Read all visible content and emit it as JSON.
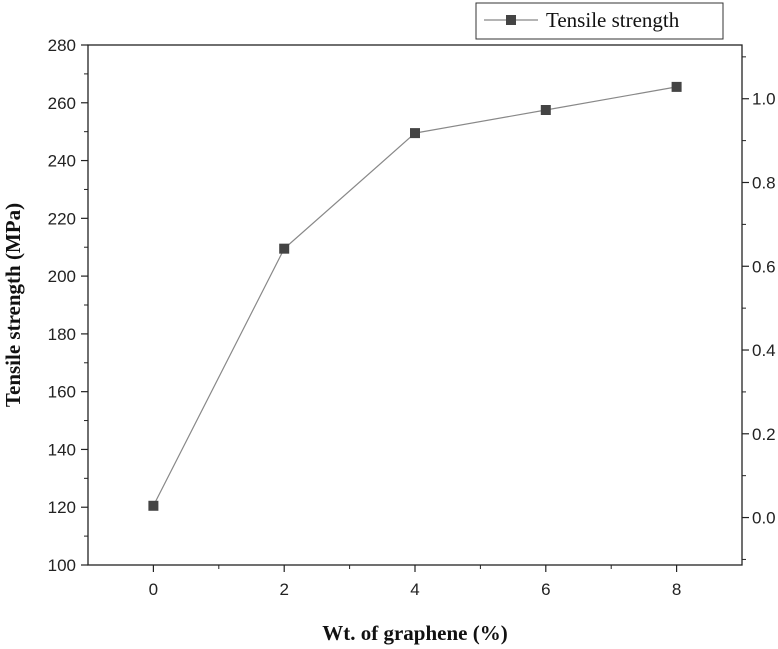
{
  "chart_data": {
    "type": "line",
    "xlabel": "Wt. of graphene (%)",
    "ylabel": "Tensile strength (MPa)",
    "xlim": [
      -1,
      9
    ],
    "ylim": [
      100,
      280
    ],
    "y2lim": [
      -0.1133,
      1.1283
    ],
    "x_ticks": [
      "0",
      "2",
      "4",
      "6",
      "8"
    ],
    "x_tick_values": [
      0,
      2,
      4,
      6,
      8
    ],
    "y_ticks": [
      "100",
      "120",
      "140",
      "160",
      "180",
      "200",
      "220",
      "240",
      "260",
      "280"
    ],
    "y_tick_values": [
      100,
      120,
      140,
      160,
      180,
      200,
      220,
      240,
      260,
      280
    ],
    "y2_ticks": [
      "0.0",
      "0.2",
      "0.4",
      "0.6",
      "0.8",
      "1.0"
    ],
    "y2_tick_values": [
      0.0,
      0.2,
      0.4,
      0.6,
      0.8,
      1.0
    ],
    "grid": false,
    "legend_position": "top-right",
    "series": [
      {
        "name": "Tensile strength",
        "x": [
          0,
          2,
          4,
          6,
          8
        ],
        "values": [
          120.5,
          209.5,
          249.5,
          257.5,
          265.5
        ],
        "color": "#444444",
        "marker": "square",
        "line_color": "#888888"
      }
    ]
  }
}
